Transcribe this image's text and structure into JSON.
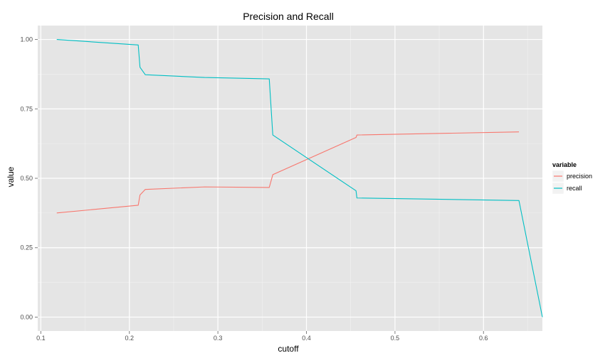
{
  "chart_data": {
    "type": "line",
    "title": "Precision and Recall",
    "xlabel": "cutoff",
    "ylabel": "value",
    "xlim": [
      0.0965,
      0.6665
    ],
    "ylim": [
      -0.05,
      1.05
    ],
    "x_ticks": [
      0.1,
      0.2,
      0.3,
      0.4,
      0.5,
      0.6
    ],
    "x_tick_labels": [
      "0.1",
      "0.2",
      "0.3",
      "0.4",
      "0.5",
      "0.6"
    ],
    "y_ticks": [
      0.0,
      0.25,
      0.5,
      0.75,
      1.0
    ],
    "y_tick_labels": [
      "0.00",
      "0.25",
      "0.50",
      "0.75",
      "1.00"
    ],
    "grid": true,
    "legend": {
      "title": "variable",
      "position": "right"
    },
    "series": [
      {
        "name": "precision",
        "color": "#F8766D",
        "x": [
          0.118,
          0.21,
          0.212,
          0.218,
          0.285,
          0.358,
          0.362,
          0.456,
          0.457,
          0.64
        ],
        "y": [
          0.375,
          0.403,
          0.44,
          0.46,
          0.469,
          0.467,
          0.513,
          0.647,
          0.656,
          0.667
        ]
      },
      {
        "name": "recall",
        "color": "#00BFC4",
        "x": [
          0.118,
          0.21,
          0.212,
          0.218,
          0.285,
          0.358,
          0.362,
          0.456,
          0.457,
          0.64,
          0.6665
        ],
        "y": [
          1.0,
          0.98,
          0.9,
          0.873,
          0.863,
          0.858,
          0.656,
          0.455,
          0.429,
          0.42,
          0.0
        ]
      }
    ]
  }
}
